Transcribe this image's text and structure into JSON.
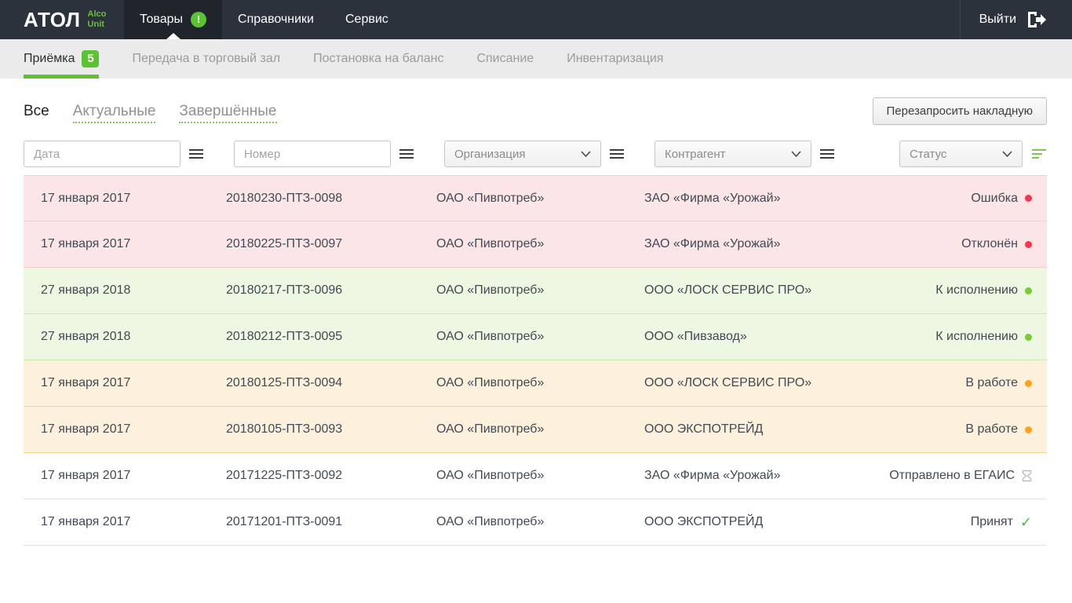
{
  "navbar": {
    "logo_text": "АТОЛ",
    "logo_sub_line1": "Alco",
    "logo_sub_line2": "Unit",
    "items": [
      {
        "label": "Товары",
        "badge": "!",
        "active": true
      },
      {
        "label": "Справочники"
      },
      {
        "label": "Сервис"
      }
    ],
    "logout_label": "Выйти"
  },
  "subnav": {
    "items": [
      {
        "label": "Приёмка",
        "badge": "5",
        "active": true
      },
      {
        "label": "Передача в торговый зал"
      },
      {
        "label": "Постановка на баланс"
      },
      {
        "label": "Списание"
      },
      {
        "label": "Инвентаризация"
      }
    ]
  },
  "tabs": {
    "items": [
      {
        "label": "Все",
        "active": true
      },
      {
        "label": "Актуальные"
      },
      {
        "label": "Завершённые"
      }
    ]
  },
  "actions": {
    "requery_label": "Перезапросить накладную"
  },
  "filters": {
    "date_placeholder": "Дата",
    "number_placeholder": "Номер",
    "organization_label": "Организация",
    "contractor_label": "Контрагент",
    "status_label": "Статус"
  },
  "icons": {
    "check_glyph": "✓"
  },
  "colors": {
    "accent_green": "#5bc236",
    "status_red": "#f4374f",
    "status_green": "#76cc33",
    "status_orange": "#ffa21f"
  },
  "rows": [
    {
      "date": "17 января 2017",
      "number": "20180230-ПТЗ-0098",
      "organization": "ОАО «Пивпотреб»",
      "contractor": "ЗАО «Фирма «Урожай»",
      "status": "Ошибка",
      "state": "error",
      "icon": "dot-red"
    },
    {
      "date": "17 января 2017",
      "number": "20180225-ПТЗ-0097",
      "organization": "ОАО «Пивпотреб»",
      "contractor": "ЗАО «Фирма «Урожай»",
      "status": "Отклонён",
      "state": "error",
      "icon": "dot-red"
    },
    {
      "date": "27 января 2018",
      "number": "20180217-ПТЗ-0096",
      "organization": "ОАО «Пивпотреб»",
      "contractor": "ООО «ЛОСК СЕРВИС ПРО»",
      "status": "К исполнению",
      "state": "ready",
      "icon": "dot-green"
    },
    {
      "date": "27 января 2018",
      "number": "20180212-ПТЗ-0095",
      "organization": "ОАО «Пивпотреб»",
      "contractor": "ООО «Пивзавод»",
      "status": "К исполнению",
      "state": "ready",
      "icon": "dot-green"
    },
    {
      "date": "17 января 2017",
      "number": "20180125-ПТЗ-0094",
      "organization": "ОАО «Пивпотреб»",
      "contractor": "ООО «ЛОСК СЕРВИС ПРО»",
      "status": "В работе",
      "state": "progress",
      "icon": "dot-orange"
    },
    {
      "date": "17 января 2017",
      "number": "20180105-ПТЗ-0093",
      "organization": "ОАО «Пивпотреб»",
      "contractor": "ООО ЭКСПОТРЕЙД",
      "status": "В работе",
      "state": "progress",
      "icon": "dot-orange"
    },
    {
      "date": "17 января 2017",
      "number": "20171225-ПТЗ-0092",
      "organization": "ОАО «Пивпотреб»",
      "contractor": "ЗАО «Фирма «Урожай»",
      "status": "Отправлено в ЕГАИС",
      "state": "plain",
      "icon": "hourglass"
    },
    {
      "date": "17 января 2017",
      "number": "20171201-ПТЗ-0091",
      "organization": "ОАО «Пивпотреб»",
      "contractor": "ООО ЭКСПОТРЕЙД",
      "status": "Принят",
      "state": "plain",
      "icon": "check"
    }
  ]
}
